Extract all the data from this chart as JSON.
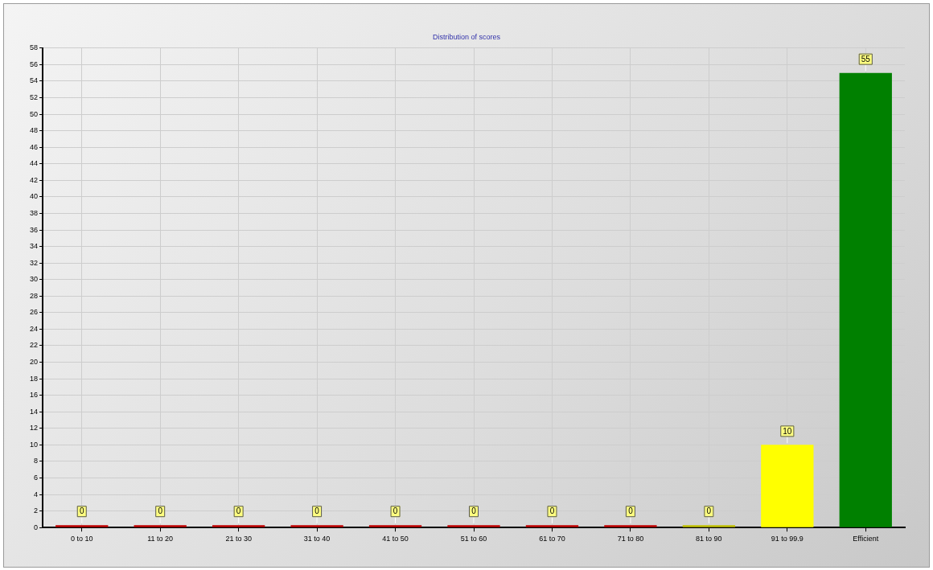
{
  "chart_data": {
    "type": "bar",
    "title": "Distribution of scores",
    "categories": [
      "0 to 10",
      "11 to 20",
      "21 to 30",
      "31 to 40",
      "41 to 50",
      "51 to 60",
      "61 to 70",
      "71 to 80",
      "81 to 90",
      "91 to 99.9",
      "Efficient"
    ],
    "values": [
      0,
      0,
      0,
      0,
      0,
      0,
      0,
      0,
      0,
      10,
      55
    ],
    "colors": [
      "#c00000",
      "#c00000",
      "#c00000",
      "#c00000",
      "#c00000",
      "#c00000",
      "#c00000",
      "#c00000",
      "#c0c000",
      "#ffff00",
      "#008000"
    ],
    "ylim": [
      0,
      58
    ],
    "yticks": [
      0,
      2,
      4,
      6,
      8,
      10,
      12,
      14,
      16,
      18,
      20,
      22,
      24,
      26,
      28,
      30,
      32,
      34,
      36,
      38,
      40,
      42,
      44,
      46,
      48,
      50,
      52,
      54,
      56,
      58
    ],
    "grid": true,
    "data_labels": true
  }
}
